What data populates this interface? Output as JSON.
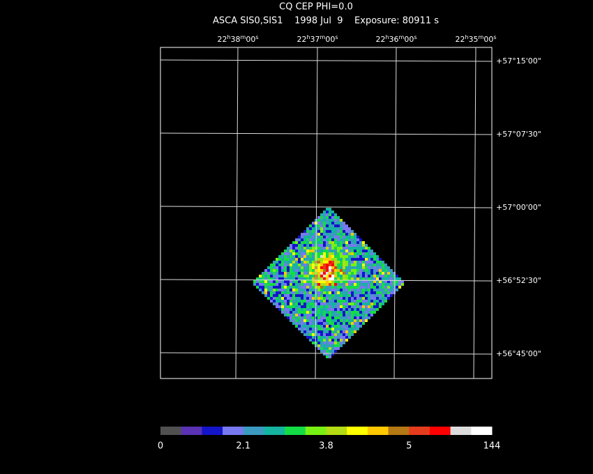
{
  "header": {
    "title": "CQ CEP PHI=0.0",
    "subtitle": "ASCA SIS0,SIS1    1998 Jul  9    Exposure: 80911 s"
  },
  "ra_labels": [
    [
      "22",
      "h",
      "38",
      "m",
      "00",
      "s"
    ],
    [
      "22",
      "h",
      "37",
      "m",
      "00",
      "s"
    ],
    [
      "22",
      "h",
      "36",
      "m",
      "00",
      "s"
    ],
    [
      "22",
      "h",
      "35",
      "m",
      "00",
      "s"
    ]
  ],
  "dec_labels": [
    "+57°15'00\"",
    "+57°07'30\"",
    "+57°00'00\"",
    "+56°52'30\"",
    "+56°45'00\""
  ],
  "colorbar": {
    "colors": [
      "#505050",
      "#5a32b4",
      "#1414c8",
      "#7878f0",
      "#3c9ac0",
      "#14b4a0",
      "#14dc46",
      "#78f014",
      "#b4dc14",
      "#ffff00",
      "#ffc800",
      "#b47814",
      "#e63c1e",
      "#ff0000",
      "#dcdcdc",
      "#ffffff"
    ],
    "labels": [
      "0",
      "2.1",
      "3.8",
      "5",
      "144"
    ]
  }
}
